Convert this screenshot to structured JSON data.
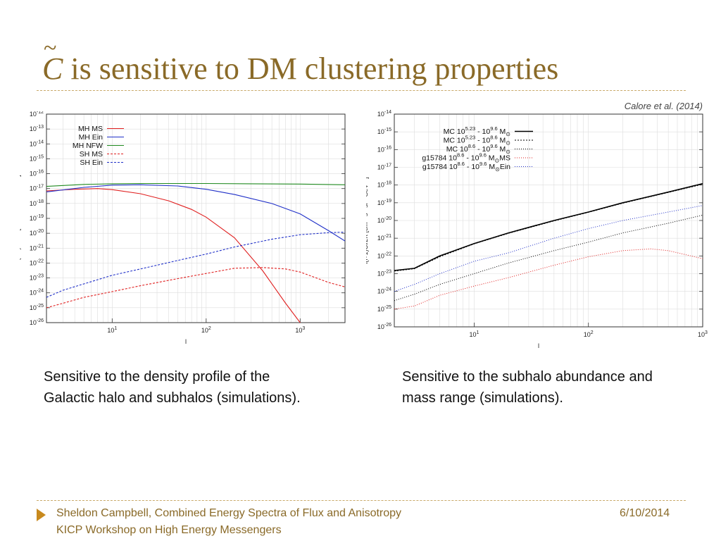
{
  "slide": {
    "title_symbol": "C",
    "title_text": "is sensitive to DM clustering properties",
    "citation": "Calore et al. (2014)",
    "caption_left": [
      "Sensitive to the density profile of the",
      "Galactic halo and subhalos (simulations)."
    ],
    "caption_right": [
      "Sensitive to the subhalo abundance and",
      "mass range (simulations)."
    ],
    "footer_line1": "Sheldon Campbell,  Combined Energy Spectra of Flux and Anisotropy",
    "footer_line2": "KICP Workshop on High Energy Messengers",
    "footer_date": "6/10/2014"
  },
  "colors": {
    "title": "#8a6a28",
    "accent": "#c88a1e"
  },
  "chart_data": [
    {
      "type": "line",
      "xlabel": "l",
      "ylabel": "l(l+1)Cₗ/2π [cm⁻⁴s⁻²sr⁻²GeV⁻²]",
      "xlim": [
        2,
        3000
      ],
      "ylim": [
        1e-26,
        1e-12
      ],
      "xscale": "log",
      "yscale": "log",
      "grid": true,
      "xticks": [
        {
          "v": 10,
          "base": "10",
          "exp": "1"
        },
        {
          "v": 100,
          "base": "10",
          "exp": "2"
        },
        {
          "v": 1000,
          "base": "10",
          "exp": "3"
        }
      ],
      "yticks_exp": [
        -26,
        -25,
        -24,
        -23,
        -22,
        -21,
        -20,
        -19,
        -18,
        -17,
        -16,
        -15,
        -14,
        -13,
        -12
      ],
      "legend_position": "top-left",
      "series": [
        {
          "name": "MH MS",
          "color": "#e02020",
          "dash": "",
          "x": [
            2,
            4,
            7,
            10,
            20,
            40,
            70,
            100,
            200,
            400,
            700,
            1000,
            1200
          ],
          "y": [
            7e-18,
            9e-18,
            1e-17,
            8.5e-18,
            4.5e-18,
            1.5e-18,
            4e-19,
            1.2e-19,
            5e-21,
            3e-23,
            2e-25,
            1e-26,
            2e-27
          ]
        },
        {
          "name": "MH Ein",
          "color": "#2030c8",
          "dash": "",
          "x": [
            2,
            5,
            10,
            20,
            50,
            100,
            200,
            500,
            1000,
            2000,
            3000
          ],
          "y": [
            6e-18,
            1.2e-17,
            1.7e-17,
            1.8e-17,
            1.5e-17,
            9e-18,
            4e-18,
            1e-18,
            2e-19,
            1.5e-20,
            3e-21
          ]
        },
        {
          "name": "MH NFW",
          "color": "#208a20",
          "dash": "",
          "x": [
            2,
            5,
            10,
            20,
            50,
            100,
            300,
            1000,
            3000
          ],
          "y": [
            1.4e-17,
            1.9e-17,
            2.1e-17,
            2.2e-17,
            2.2e-17,
            2.2e-17,
            2.1e-17,
            2e-17,
            1.8e-17
          ]
        },
        {
          "name": "SH MS",
          "color": "#e02020",
          "dash": "3,2",
          "x": [
            2,
            3,
            5,
            10,
            20,
            50,
            100,
            200,
            400,
            700,
            1000,
            2000,
            3000
          ],
          "y": [
            1e-25,
            2e-25,
            5e-25,
            1.2e-24,
            3e-24,
            9e-24,
            2e-23,
            4.5e-23,
            5e-23,
            4e-23,
            2.5e-23,
            5e-24,
            2.5e-24
          ]
        },
        {
          "name": "SH Ein",
          "color": "#2030c8",
          "dash": "3,2",
          "x": [
            2,
            3,
            5,
            10,
            20,
            50,
            100,
            200,
            500,
            1000,
            2000,
            3000
          ],
          "y": [
            5e-25,
            1.5e-24,
            4e-24,
            1.5e-23,
            4e-23,
            1.5e-22,
            4e-22,
            1.2e-21,
            4e-21,
            8e-21,
            1.1e-20,
            1.2e-20
          ]
        }
      ]
    },
    {
      "type": "line",
      "xlabel": "l",
      "ylabel": "l(l+1)Cₗ/2π [cm⁻⁴s⁻²sr⁻²GeV⁻²]",
      "xlim": [
        2,
        1000
      ],
      "ylim": [
        1e-26,
        1e-14
      ],
      "xscale": "log",
      "yscale": "log",
      "grid": true,
      "xticks": [
        {
          "v": 10,
          "base": "10",
          "exp": "1"
        },
        {
          "v": 100,
          "base": "10",
          "exp": "2"
        },
        {
          "v": 1000,
          "base": "10",
          "exp": "3"
        }
      ],
      "yticks_exp": [
        -26,
        -25,
        -24,
        -23,
        -22,
        -21,
        -20,
        -19,
        -18,
        -17,
        -16,
        -15,
        -14
      ],
      "legend_position": "top-left",
      "series": [
        {
          "name_parts": [
            "MC 10",
            "5.23",
            " - 10",
            "9.6",
            " M",
            "⊙"
          ],
          "color": "#000000",
          "dash": "",
          "width": 1.6,
          "x": [
            2,
            3,
            5,
            10,
            20,
            50,
            100,
            200,
            500,
            1000
          ],
          "y": [
            1.5e-23,
            2e-23,
            1e-22,
            5e-22,
            2e-21,
            1e-20,
            3e-20,
            1e-19,
            4e-19,
            1.2e-18
          ]
        },
        {
          "name_parts": [
            "MC 10",
            "5.23",
            " - 10",
            "8.6",
            " M",
            "⊙"
          ],
          "color": "#000000",
          "dash": "2,2",
          "width": 1,
          "x": [
            2,
            3,
            5,
            10,
            20,
            50,
            100,
            200,
            500,
            1000
          ],
          "y": [
            1.4e-23,
            1.9e-23,
            9e-23,
            4.8e-22,
            1.9e-21,
            9.5e-21,
            2.9e-20,
            9.5e-20,
            3.8e-19,
            1.1e-18
          ]
        },
        {
          "name_parts": [
            "MC 10",
            "8.6",
            " - 10",
            "9.6",
            " M",
            "⊙"
          ],
          "color": "#000000",
          "dash": "1,2",
          "width": 1,
          "x": [
            2,
            3,
            5,
            10,
            20,
            50,
            100,
            200,
            500,
            1000
          ],
          "y": [
            3e-25,
            7e-25,
            2.5e-24,
            1e-23,
            4e-23,
            2e-22,
            6e-22,
            2e-21,
            7e-21,
            2e-20
          ]
        },
        {
          "name_parts": [
            "g15784 10",
            "8.6",
            " - 10",
            "9.6",
            " M",
            "⊙",
            "MS"
          ],
          "color": "#e02020",
          "dash": "1,2",
          "width": 1,
          "x": [
            2,
            3,
            5,
            10,
            20,
            50,
            100,
            200,
            350,
            500,
            1000
          ],
          "y": [
            1e-25,
            1.5e-25,
            6e-25,
            2e-24,
            6e-24,
            3e-23,
            9e-23,
            2e-22,
            2.5e-22,
            2e-22,
            7e-23
          ]
        },
        {
          "name_parts": [
            "g15784 10",
            "8.6",
            " - 10",
            "9.6",
            " M",
            "⊙",
            "Ein"
          ],
          "color": "#2030c8",
          "dash": "1,2",
          "width": 1,
          "x": [
            2,
            3,
            5,
            10,
            20,
            50,
            100,
            200,
            500,
            1000
          ],
          "y": [
            1e-24,
            2.5e-24,
            1e-23,
            5e-23,
            1.5e-22,
            1e-21,
            3.5e-21,
            1e-20,
            3e-20,
            7e-20
          ]
        }
      ]
    }
  ]
}
